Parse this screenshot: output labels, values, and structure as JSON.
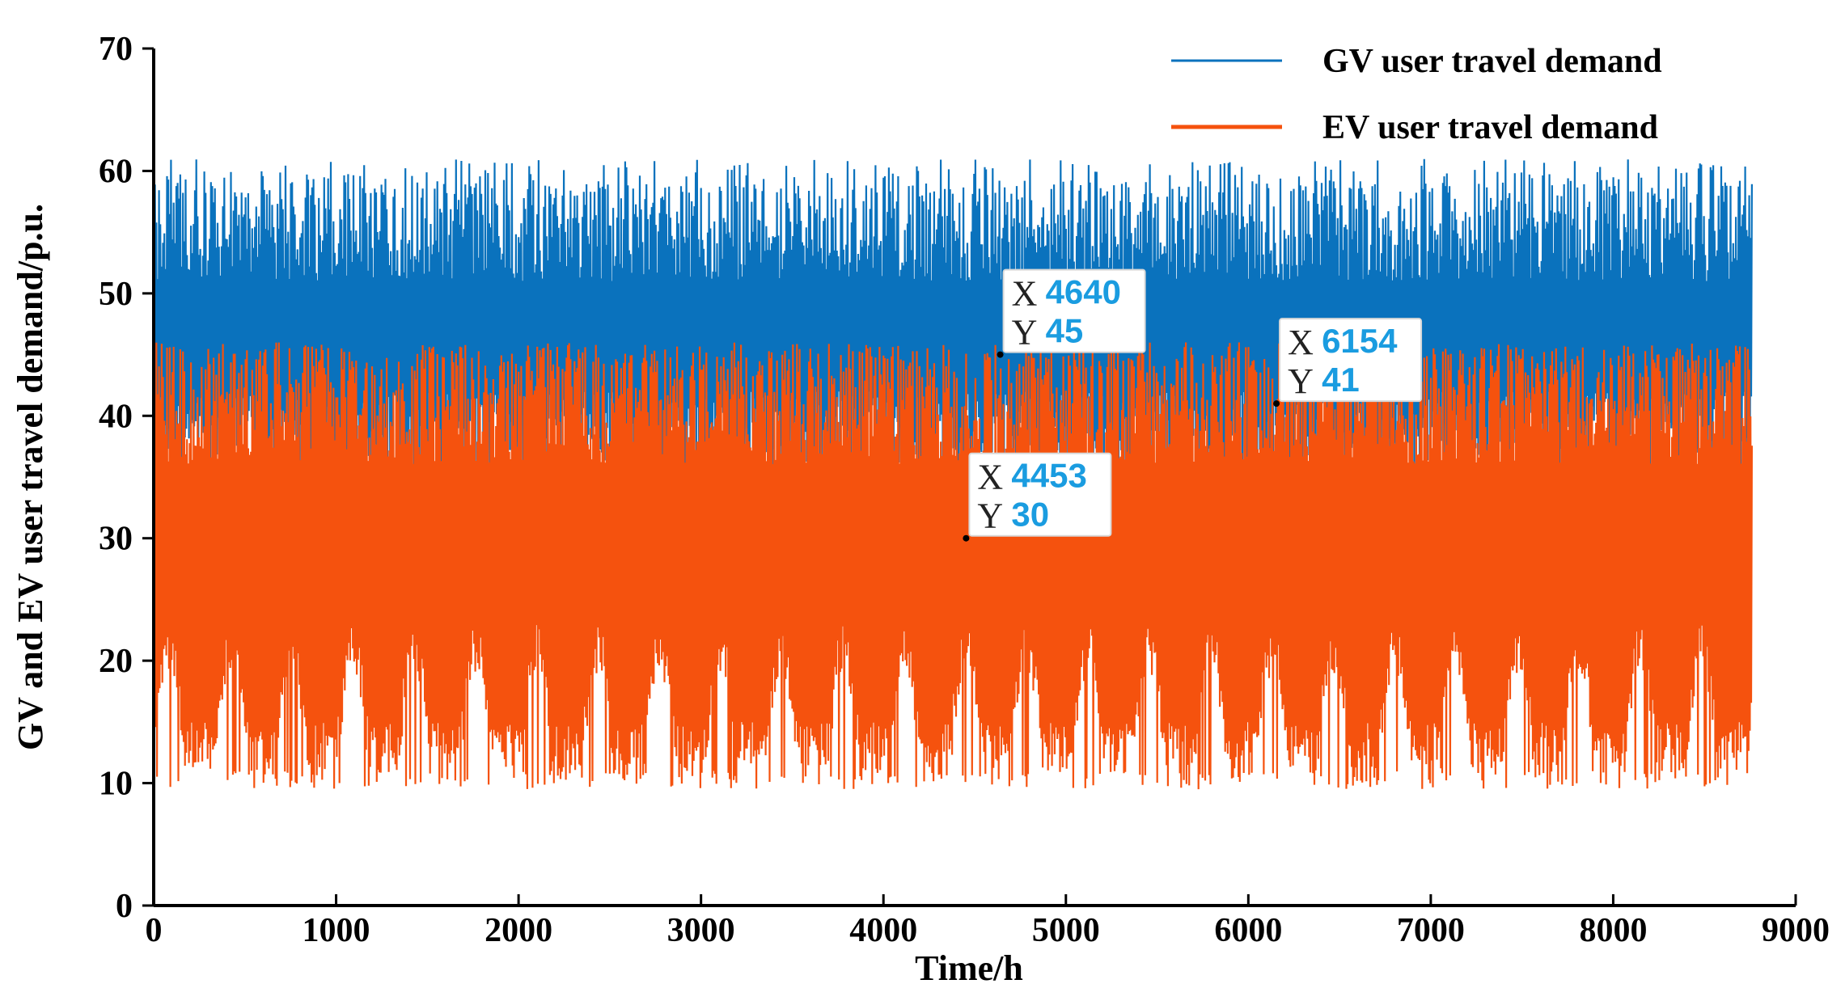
{
  "colors": {
    "gv": "#0a72bd",
    "ev": "#f5520e",
    "tip_value": "#1a9ce0"
  },
  "chart_data": {
    "type": "line",
    "title": "",
    "xlabel": "Time/h",
    "ylabel": "GV and EV user travel demand/p.u.",
    "xlim": [
      0,
      9000
    ],
    "ylim": [
      0,
      70
    ],
    "x_ticks": [
      0,
      1000,
      2000,
      3000,
      4000,
      5000,
      6000,
      7000,
      8000,
      9000
    ],
    "y_ticks": [
      0,
      10,
      20,
      30,
      40,
      50,
      60,
      70
    ],
    "x_tick_labels": [
      "0",
      "1000",
      "2000",
      "3000",
      "4000",
      "5000",
      "6000",
      "7000",
      "8000",
      "9000"
    ],
    "y_tick_labels": [
      "0",
      "10",
      "20",
      "30",
      "40",
      "50",
      "60",
      "70"
    ],
    "legend_position": "top-right",
    "series": [
      {
        "name": "GV user travel demand",
        "color": "#0a72bd",
        "x_range": [
          0,
          8760
        ],
        "description": "hourly values oscillating between about 34 and 61",
        "band_low": 34,
        "band_high": 61,
        "typical_low": 36,
        "typical_high": 55
      },
      {
        "name": "EV user travel demand",
        "color": "#f5520e",
        "x_range": [
          0,
          8760
        ],
        "description": "hourly values oscillating between about 9.5 and 46",
        "band_low": 9.5,
        "band_high": 46,
        "typical_low": 11,
        "typical_high": 42
      }
    ],
    "annotations": [
      {
        "x": 4640,
        "y": 45,
        "x_label": "X",
        "y_label": "Y",
        "x_text": "4640",
        "y_text": "45"
      },
      {
        "x": 6154,
        "y": 41,
        "x_label": "X",
        "y_label": "Y",
        "x_text": "6154",
        "y_text": "41"
      },
      {
        "x": 4453,
        "y": 30,
        "x_label": "X",
        "y_label": "Y",
        "x_text": "4453",
        "y_text": "30"
      }
    ]
  }
}
